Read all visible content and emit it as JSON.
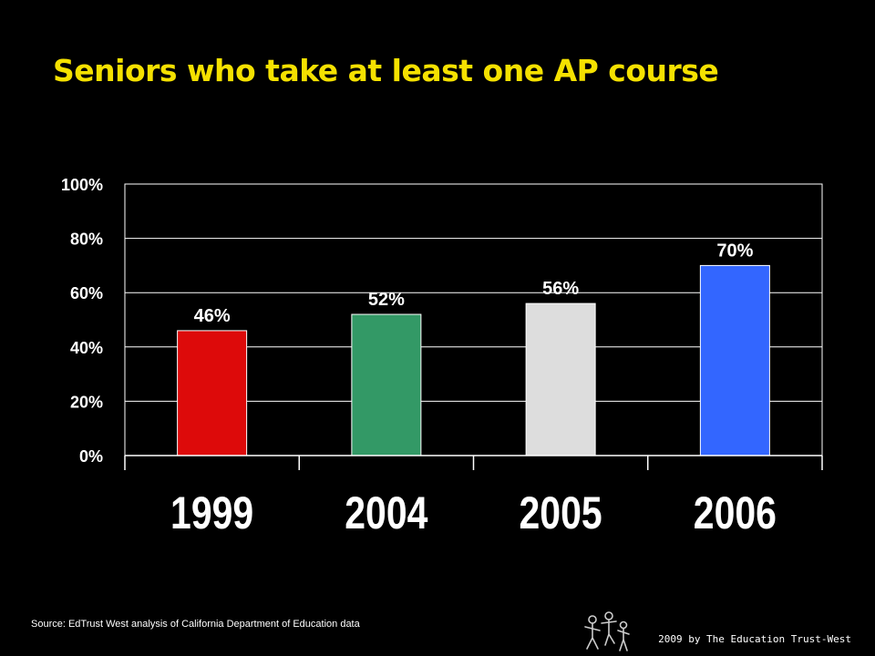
{
  "slide": {
    "title": "Seniors who take at least one AP course",
    "source": "Source: EdTrust West analysis of California Department of Education data",
    "copyright": "2009 by The Education Trust-West"
  },
  "colors": {
    "background": "#000000",
    "title": "#F5E100",
    "text": "#FFFFFF"
  },
  "chart_data": {
    "type": "bar",
    "categories": [
      "1999",
      "2004",
      "2005",
      "2006"
    ],
    "values": [
      46,
      52,
      56,
      70
    ],
    "data_labels": [
      "46%",
      "52%",
      "56%",
      "70%"
    ],
    "bar_colors": [
      "#DD0A0A",
      "#339966",
      "#DDDDDD",
      "#3366FF"
    ],
    "yticks": [
      "0%",
      "20%",
      "40%",
      "60%",
      "80%",
      "100%"
    ],
    "ylim": [
      0,
      100
    ],
    "grid": true,
    "plot_background": "#000000",
    "grid_color": "#FFFFFF"
  },
  "logo": {
    "icon": "education-trust-west-logo-icon"
  }
}
